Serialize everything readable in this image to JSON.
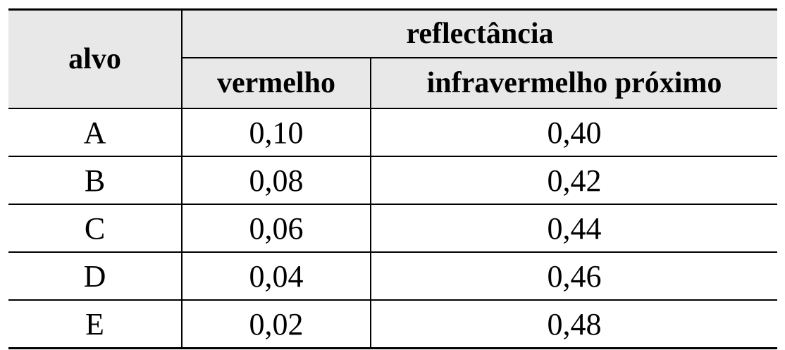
{
  "table": {
    "header": {
      "col1": "alvo",
      "group": "reflectância",
      "sub": [
        "vermelho",
        "infravermelho próximo"
      ]
    },
    "rows": [
      {
        "alvo": "A",
        "vermelho": "0,10",
        "infravermelho": "0,40"
      },
      {
        "alvo": "B",
        "vermelho": "0,08",
        "infravermelho": "0,42"
      },
      {
        "alvo": "C",
        "vermelho": "0,06",
        "infravermelho": "0,44"
      },
      {
        "alvo": "D",
        "vermelho": "0,04",
        "infravermelho": "0,46"
      },
      {
        "alvo": "E",
        "vermelho": "0,02",
        "infravermelho": "0,48"
      }
    ]
  }
}
